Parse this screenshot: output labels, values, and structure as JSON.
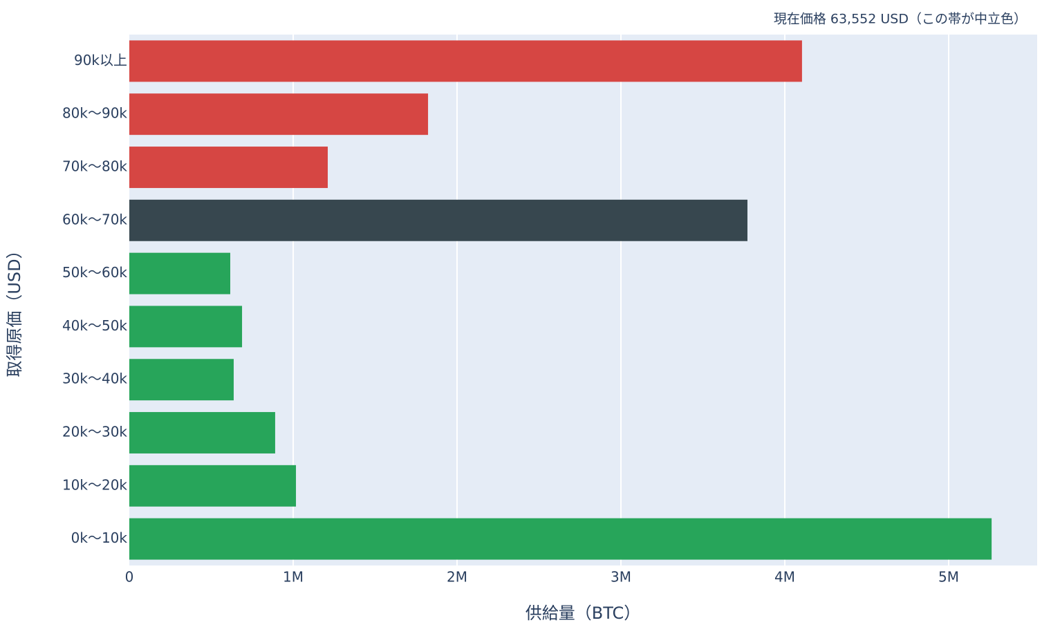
{
  "chart_data": {
    "type": "barh",
    "annotation": "現在価格 63,552 USD（この帯が中立色）",
    "xlabel": "供給量（BTC）",
    "ylabel": "取得原価（USD）",
    "categories": [
      "0k〜10k",
      "10k〜20k",
      "20k〜30k",
      "30k〜40k",
      "40k〜50k",
      "50k〜60k",
      "60k〜70k",
      "70k〜80k",
      "80k〜90k",
      "90k以上"
    ],
    "values": [
      5262000,
      1017000,
      890000,
      637000,
      688000,
      616000,
      3772000,
      1211000,
      1823000,
      4105000
    ],
    "colors": [
      "#27a55a",
      "#27a55a",
      "#27a55a",
      "#27a55a",
      "#27a55a",
      "#27a55a",
      "#37474f",
      "#d64643",
      "#d64643",
      "#d64643"
    ],
    "xlim": [
      0,
      5540000
    ],
    "xticks": [
      0,
      {
        "value": 1000000,
        "label": "1M"
      },
      {
        "value": 2000000,
        "label": "2M"
      },
      {
        "value": 3000000,
        "label": "3M"
      },
      {
        "value": 4000000,
        "label": "4M"
      },
      {
        "value": 5000000,
        "label": "5M"
      }
    ],
    "grid": true
  }
}
